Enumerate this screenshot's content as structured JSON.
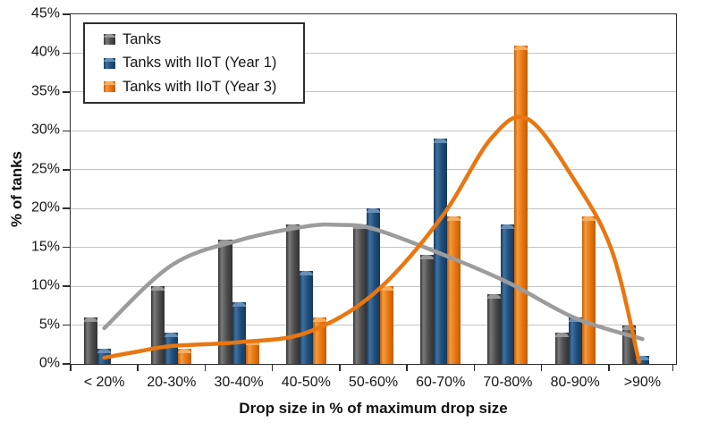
{
  "chart_data": {
    "type": "bar",
    "title": "",
    "xlabel": "Drop size in % of maximum drop size",
    "ylabel": "% of tanks",
    "ylim": [
      0,
      45
    ],
    "ytick_step": 5,
    "ytick_labels": [
      "0%",
      "5%",
      "10%",
      "15%",
      "20%",
      "25%",
      "30%",
      "35%",
      "40%",
      "45%"
    ],
    "categories": [
      "< 20%",
      "20-30%",
      "30-40%",
      "40-50%",
      "50-60%",
      "60-70%",
      "70-80%",
      "80-90%",
      ">90%"
    ],
    "grid": true,
    "legend_position": "top-left",
    "series": [
      {
        "name": "Tanks",
        "color": "#4e4e4e",
        "color_light": "#7a7a7a",
        "color_dark": "#323232",
        "color_cap": "#9b9b9b",
        "values": [
          6,
          10,
          16,
          18,
          18,
          14,
          9,
          4,
          5
        ]
      },
      {
        "name": "Tanks with IIoT (Year 1)",
        "color": "#1f4e7c",
        "color_light": "#41719f",
        "color_dark": "#16395b",
        "color_cap": "#6a92bc",
        "values": [
          2,
          4,
          8,
          12,
          20,
          29,
          18,
          6,
          1
        ]
      },
      {
        "name": "Tanks with IIoT (Year 3)",
        "color": "#e97610",
        "color_light": "#f59b3f",
        "color_dark": "#c05e08",
        "color_cap": "#f8b063",
        "values": [
          0,
          2,
          3,
          6,
          10,
          19,
          41,
          19,
          0
        ]
      }
    ],
    "trend_curves": [
      {
        "name": "Tanks trend",
        "color": "#9c9c9c",
        "points": [
          [
            0,
            4.6
          ],
          [
            1,
            12.7
          ],
          [
            2,
            15.9
          ],
          [
            3,
            17.7
          ],
          [
            3.5,
            17.9
          ],
          [
            4,
            17.4
          ],
          [
            5,
            14.2
          ],
          [
            6,
            10.5
          ],
          [
            7,
            5.9
          ],
          [
            8,
            3.2
          ]
        ]
      },
      {
        "name": "Tanks with IIoT (Year 3) trend",
        "color": "#e97610",
        "points": [
          [
            0,
            0.8
          ],
          [
            0.5,
            1.6
          ],
          [
            1,
            2.3
          ],
          [
            2,
            2.8
          ],
          [
            3,
            4.0
          ],
          [
            4,
            9.0
          ],
          [
            5,
            18.7
          ],
          [
            5.75,
            29.0
          ],
          [
            6.3,
            31.5
          ],
          [
            7,
            23.5
          ],
          [
            7.55,
            14.5
          ],
          [
            7.95,
            0.3
          ]
        ]
      }
    ],
    "axis_color": "#2e2e2e",
    "gridline_color": "#c3c3c3",
    "background_color": "#ffffff"
  }
}
